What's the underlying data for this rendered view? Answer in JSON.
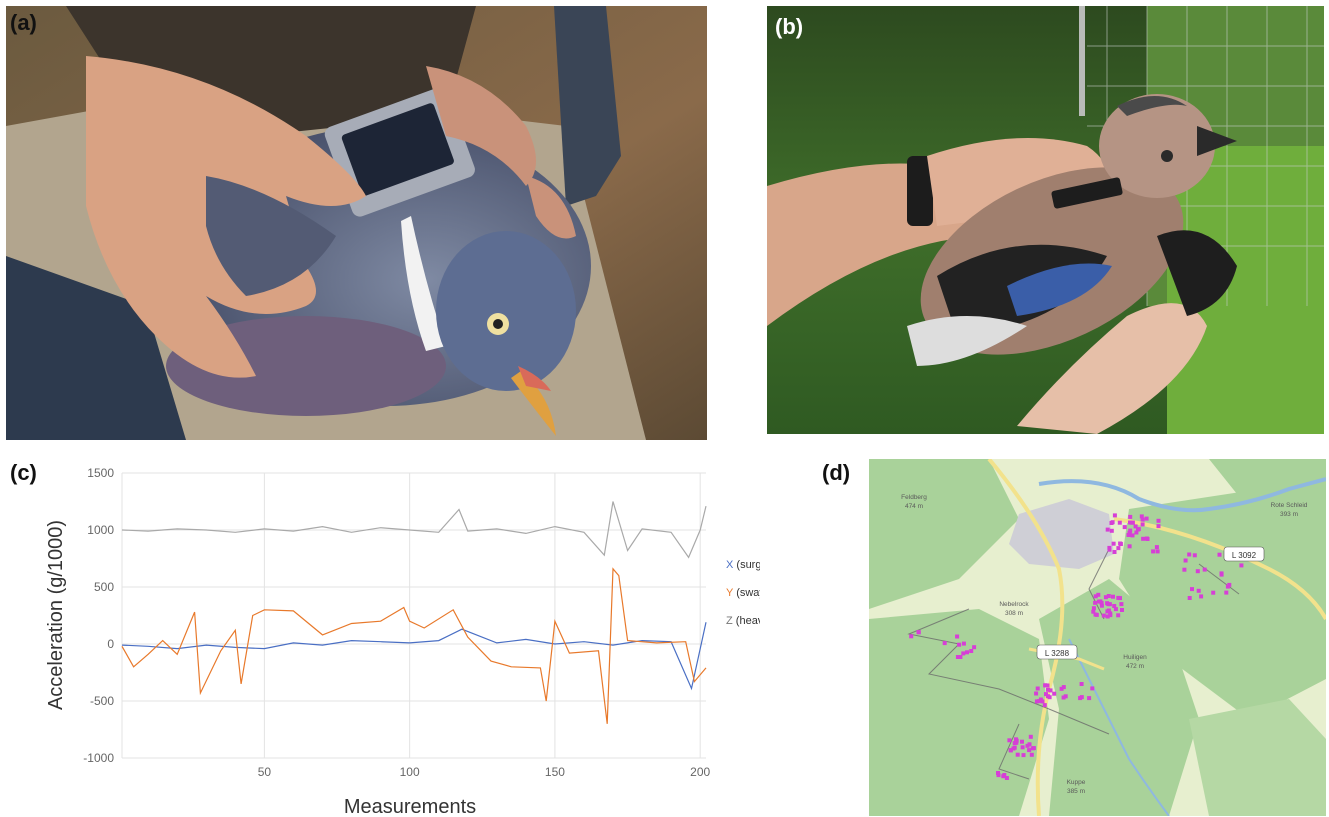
{
  "panels": {
    "a": {
      "label": "(a)"
    },
    "b": {
      "label": "(b)"
    },
    "c": {
      "label": "(c)"
    },
    "d": {
      "label": "(d)"
    }
  },
  "map": {
    "road_labels": [
      "L 3092",
      "L 3288"
    ],
    "places": [
      {
        "name": "Nebelrock",
        "elevation": "308 m"
      },
      {
        "name": "Huiligen",
        "elevation": "472 m"
      },
      {
        "name": "Kuppe",
        "elevation": "385 m"
      },
      {
        "name": "Feldberg",
        "elevation": "474 m"
      },
      {
        "name": "Rote Schleid",
        "elevation": "393 m"
      }
    ],
    "colors": {
      "forest": "#a9d29a",
      "field": "#e7efcf",
      "town": "#cfcfd6",
      "points": "#d63fd6",
      "river": "#8fb8e0",
      "road": "#f2e28c"
    }
  },
  "chart_data": {
    "type": "line",
    "title": "",
    "xlabel": "Measurements",
    "ylabel": "Acceleration (g/1000)",
    "xlim": [
      1,
      202
    ],
    "ylim": [
      -1000,
      1500
    ],
    "xticks": [
      "50",
      "100",
      "150",
      "200"
    ],
    "yticks": [
      "1500",
      "1000",
      "500",
      "0",
      "-500",
      "-1000"
    ],
    "grid": true,
    "legend_position": "right",
    "series": [
      {
        "name": "X (surge)",
        "legend_prefix": "X",
        "legend_suffix": " (surge)",
        "color": "#4a6fc4",
        "x": [
          1,
          10,
          20,
          30,
          40,
          50,
          60,
          70,
          80,
          90,
          100,
          110,
          118,
          130,
          140,
          150,
          160,
          170,
          180,
          190,
          197,
          202
        ],
        "values": [
          -10,
          -20,
          -40,
          -10,
          -30,
          -40,
          10,
          -10,
          30,
          20,
          10,
          30,
          130,
          10,
          40,
          0,
          20,
          -10,
          30,
          20,
          -390,
          190
        ]
      },
      {
        "name": "Y (sway)",
        "legend_prefix": "Y",
        "legend_suffix": " (sway)",
        "color": "#e8792b",
        "x": [
          1,
          5,
          10,
          15,
          20,
          26,
          28,
          35,
          40,
          42,
          46,
          50,
          60,
          70,
          80,
          90,
          98,
          100,
          105,
          115,
          120,
          128,
          135,
          145,
          147,
          150,
          155,
          165,
          168,
          170,
          172,
          175,
          185,
          195,
          198,
          202
        ],
        "values": [
          -20,
          -200,
          -90,
          30,
          -90,
          280,
          -430,
          -60,
          120,
          -350,
          250,
          300,
          290,
          80,
          180,
          200,
          320,
          200,
          140,
          300,
          60,
          -150,
          -200,
          -210,
          -500,
          200,
          -80,
          -60,
          -700,
          660,
          600,
          30,
          10,
          20,
          -330,
          -210
        ]
      },
      {
        "name": "Z (heave)",
        "legend_prefix": "Z",
        "legend_suffix": " (heave)",
        "color": "#a9a9a9",
        "x": [
          1,
          10,
          20,
          30,
          40,
          50,
          60,
          70,
          80,
          90,
          100,
          110,
          117,
          120,
          130,
          140,
          150,
          160,
          167,
          170,
          175,
          180,
          190,
          196,
          200,
          202
        ],
        "values": [
          1000,
          990,
          1010,
          1000,
          980,
          1010,
          990,
          1030,
          980,
          1020,
          1000,
          980,
          1180,
          990,
          1010,
          970,
          1030,
          980,
          780,
          1250,
          820,
          1010,
          980,
          760,
          1000,
          1210
        ]
      }
    ]
  }
}
